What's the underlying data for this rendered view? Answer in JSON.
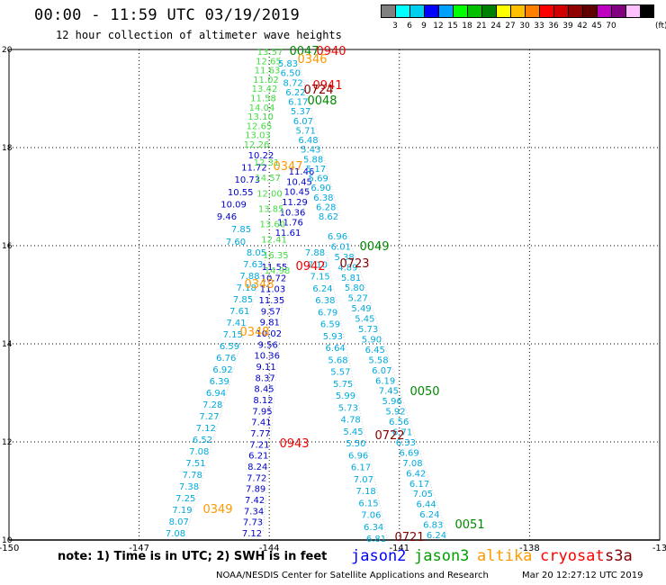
{
  "title": "00:00 - 11:59 UTC 03/19/2019",
  "subtitle": "12 hour collection of altimeter wave heights",
  "colorbar": {
    "unit": "(ft)",
    "swatches": [
      "#808080",
      "#00ffff",
      "#00d0f0",
      "#0000ff",
      "#00a0ff",
      "#00ff00",
      "#00c000",
      "#008000",
      "#ffff00",
      "#ffc000",
      "#ff8000",
      "#ff0000",
      "#d00000",
      "#900000",
      "#600000",
      "#c000c0",
      "#800080",
      "#ffc0ff",
      "#000000"
    ],
    "levels": [
      "3",
      "6",
      "9",
      "12",
      "15",
      "18",
      "21",
      "24",
      "27",
      "30",
      "33",
      "36",
      "39",
      "42",
      "45",
      "70"
    ]
  },
  "axes": {
    "lon_ticks": [
      "-150",
      "-147",
      "-144",
      "-141",
      "-138",
      "-13"
    ],
    "lat_ticks": [
      "20",
      "18",
      "16",
      "14",
      "12",
      "10"
    ],
    "lon_range": [
      -150,
      -135
    ],
    "lat_range": [
      10,
      20
    ]
  },
  "footer": {
    "note": "note: 1) Time is in UTC; 2) SWH is in feet",
    "legend": [
      {
        "name": "jason2",
        "color": "#0000ff"
      },
      {
        "name": "jason3",
        "color": "#00a000"
      },
      {
        "name": "altika",
        "color": "#ff9900"
      },
      {
        "name": "cryosat",
        "color": "#ff0000"
      },
      {
        "name": "s3a",
        "color": "#800000"
      }
    ],
    "credit": "NOAA/NESDIS Center for Satellite Applications and Research",
    "timestamp": "Mar 20 12:27:12 UTC 2019"
  },
  "tracks": [
    {
      "name": "track-a",
      "color": "#00aadd",
      "values": [
        "8.05",
        "7.63",
        "7.88",
        "7.18",
        "7.85",
        "7.61",
        "7.41",
        "7.15",
        "6.59",
        "6.76",
        "6.92",
        "6.39",
        "6.94",
        "7.28",
        "7.27",
        "7.12",
        "6.52",
        "7.08",
        "7.51",
        "7.78",
        "7.38",
        "7.25",
        "7.19",
        "8.07",
        "7.08"
      ]
    },
    {
      "name": "track-b",
      "color": "#0000cc",
      "values": [
        "10.22",
        "11.72",
        "10.73",
        "10.55",
        "10.09",
        "9.46"
      ]
    },
    {
      "name": "track-b2",
      "color": "#00aadd",
      "values": [
        "7.85",
        "7.60"
      ]
    },
    {
      "name": "track-c",
      "color": "#0000cc",
      "values": [
        "11.55",
        "10.72",
        "11.03",
        "11.35",
        "9.57",
        "9.81",
        "10.02",
        "9.56",
        "10.36",
        "9.11",
        "8.37",
        "8.45",
        "8.12",
        "7.95",
        "7.41",
        "7.77",
        "7.21",
        "6.21",
        "8.24",
        "7.72",
        "7.89",
        "7.42",
        "7.34",
        "7.73",
        "7.12"
      ]
    },
    {
      "name": "track-d",
      "color": "#00aadd",
      "values": [
        "7.88",
        "7.10",
        "7.15",
        "6.24",
        "6.38",
        "6.79",
        "6.59",
        "5.93",
        "6.64",
        "5.68",
        "5.57",
        "5.75",
        "5.99",
        "5.73",
        "4.78",
        "5.45",
        "5.50",
        "6.96",
        "6.17",
        "7.07",
        "7.18",
        "6.15",
        "7.06",
        "6.34",
        "6.81"
      ]
    },
    {
      "name": "track-e",
      "color": "#00aadd",
      "values": [
        "6.96",
        "6.01",
        "5.38",
        "4.89",
        "5.81",
        "5.80",
        "5.27",
        "5.49",
        "5.45",
        "5.73",
        "5.90",
        "6.45",
        "5.58",
        "6.07",
        "6.19",
        "7.45",
        "5.96",
        "5.92",
        "6.56",
        "6.71",
        "6.33",
        "6.69",
        "7.08",
        "6.42",
        "6.17",
        "7.05",
        "6.44",
        "6.24",
        "6.83",
        "6.24"
      ]
    },
    {
      "name": "track-f-top",
      "color": "#44dd44",
      "values": [
        "13.57",
        "12.65",
        "11.63",
        "11.02",
        "13.42",
        "11.58",
        "14.04",
        "13.10",
        "12.65",
        "13.03",
        "12.26"
      ]
    },
    {
      "name": "track-f-mid",
      "color": "#0000cc",
      "values": [
        "11.46",
        "10.45",
        "10.45",
        "11.29",
        "10.36",
        "11.76",
        "11.61"
      ]
    },
    {
      "name": "track-f-mid2",
      "color": "#00aadd",
      "values": [
        "8.62",
        "6.28",
        "6.38",
        "6.90",
        "5.69",
        "5.17",
        "5.88",
        "5.43",
        "6.48",
        "5.71",
        "6.07",
        "5.37",
        "6.17",
        "6.22",
        "8.72",
        "6.50",
        "5.83"
      ]
    },
    {
      "name": "track-f-green",
      "color": "#44dd44",
      "values": [
        "12.31",
        "14.57",
        "12.00",
        "13.85",
        "13.60",
        "12.41",
        "16.35",
        "14.98"
      ]
    }
  ],
  "times": [
    {
      "text": "0047",
      "color": "#008800"
    },
    {
      "text": "0940",
      "color": "#ee0000"
    },
    {
      "text": "0346",
      "color": "#ff9900"
    },
    {
      "text": "0941",
      "color": "#ee0000"
    },
    {
      "text": "0724",
      "color": "#880000"
    },
    {
      "text": "0048",
      "color": "#008800"
    },
    {
      "text": "0347",
      "color": "#ff9900"
    },
    {
      "text": "0049",
      "color": "#008800"
    },
    {
      "text": "0942",
      "color": "#ee0000"
    },
    {
      "text": "0723",
      "color": "#880000"
    },
    {
      "text": "0348",
      "color": "#ff9900"
    },
    {
      "text": "0348",
      "color": "#ff9900"
    },
    {
      "text": "0050",
      "color": "#008800"
    },
    {
      "text": "0722",
      "color": "#880000"
    },
    {
      "text": "0943",
      "color": "#ee0000"
    },
    {
      "text": "0349",
      "color": "#ff9900"
    },
    {
      "text": "0051",
      "color": "#008800"
    },
    {
      "text": "0721",
      "color": "#880000"
    }
  ]
}
